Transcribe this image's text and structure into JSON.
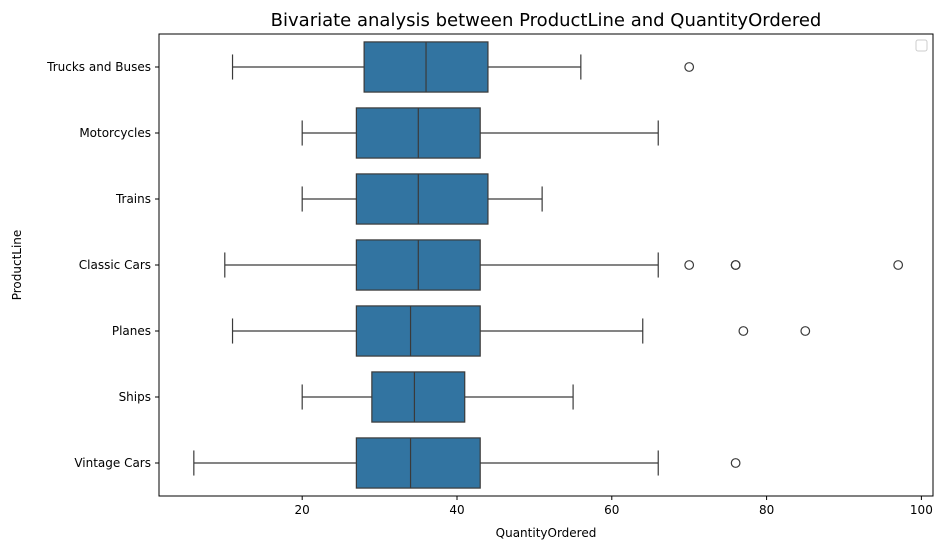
{
  "chart_data": {
    "type": "box",
    "orientation": "horizontal",
    "title": "Bivariate analysis between ProductLine and QuantityOrdered",
    "xlabel": "QuantityOrdered",
    "ylabel": "ProductLine",
    "xlim": [
      1.5,
      101.5
    ],
    "xticks": [
      20,
      40,
      60,
      80,
      100
    ],
    "grid": false,
    "legend": "top-right (empty)",
    "box_color": "#3274a1",
    "line_color": "#3a3a3a",
    "categories": [
      "Trucks and Buses",
      "Motorcycles",
      "Trains",
      "Classic Cars",
      "Planes",
      "Ships",
      "Vintage Cars"
    ],
    "boxes": [
      {
        "category": "Trucks and Buses",
        "whisker_low": 11,
        "q1": 28,
        "median": 36,
        "q3": 44,
        "whisker_high": 56,
        "outliers": [
          70
        ]
      },
      {
        "category": "Motorcycles",
        "whisker_low": 20,
        "q1": 27,
        "median": 35,
        "q3": 43,
        "whisker_high": 66,
        "outliers": []
      },
      {
        "category": "Trains",
        "whisker_low": 20,
        "q1": 27,
        "median": 35,
        "q3": 44,
        "whisker_high": 51,
        "outliers": []
      },
      {
        "category": "Classic Cars",
        "whisker_low": 10,
        "q1": 27,
        "median": 35,
        "q3": 43,
        "whisker_high": 66,
        "outliers": [
          70,
          76,
          76,
          97
        ]
      },
      {
        "category": "Planes",
        "whisker_low": 11,
        "q1": 27,
        "median": 34,
        "q3": 43,
        "whisker_high": 64,
        "outliers": [
          77,
          85
        ]
      },
      {
        "category": "Ships",
        "whisker_low": 20,
        "q1": 29,
        "median": 34.5,
        "q3": 41,
        "whisker_high": 55,
        "outliers": []
      },
      {
        "category": "Vintage Cars",
        "whisker_low": 6,
        "q1": 27,
        "median": 34,
        "q3": 43,
        "whisker_high": 66,
        "outliers": [
          76
        ]
      }
    ]
  }
}
